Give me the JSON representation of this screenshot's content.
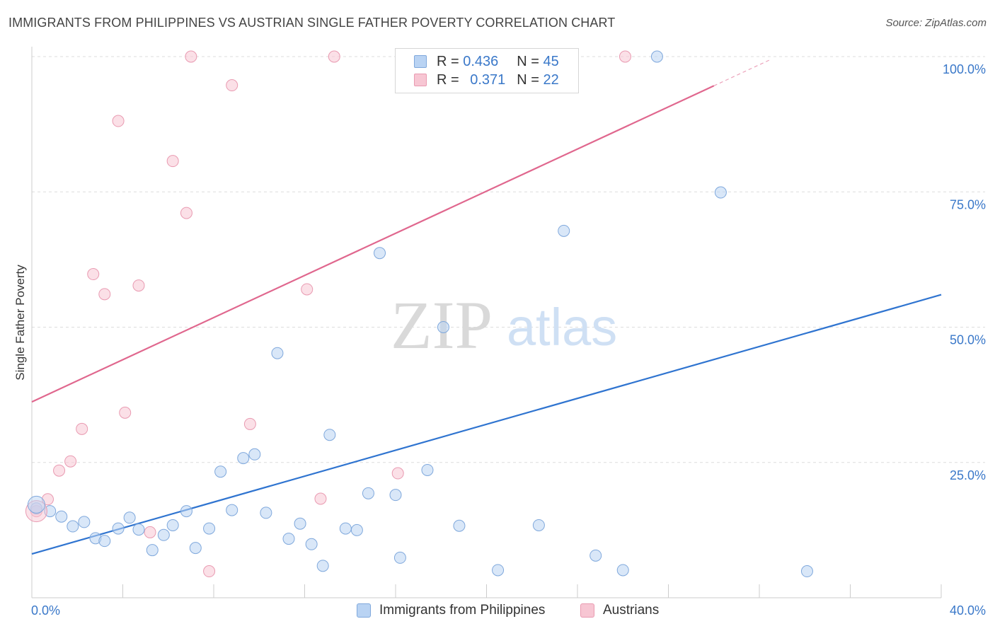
{
  "title": "IMMIGRANTS FROM PHILIPPINES VS AUSTRIAN SINGLE FATHER POVERTY CORRELATION CHART",
  "source": "Source: ZipAtlas.com",
  "watermark": {
    "zip": "ZIP",
    "atlas": "atlas"
  },
  "colors": {
    "blue_fill": "#b9d3f3",
    "blue_stroke": "#7fa8dc",
    "blue_line": "#2f74d0",
    "pink_fill": "#f7c6d3",
    "pink_stroke": "#e99ab1",
    "pink_line": "#e0678e",
    "tick_label": "#3a78c9",
    "grid": "#dddddd"
  },
  "legend": {
    "rows": [
      {
        "r_label": "R =",
        "r_value": "0.436",
        "n_label": "N =",
        "n_value": "45"
      },
      {
        "r_label": "R =",
        "r_value": "0.371",
        "n_label": "N =",
        "n_value": "22"
      }
    ]
  },
  "chart_data": {
    "type": "scatter",
    "title": "IMMIGRANTS FROM PHILIPPINES VS AUSTRIAN SINGLE FATHER POVERTY CORRELATION CHART",
    "xlabel": "",
    "ylabel": "Single Father Poverty",
    "xlim": [
      0,
      40
    ],
    "ylim": [
      0,
      100
    ],
    "x_tick_labels": [
      "0.0%",
      "40.0%"
    ],
    "y_tick_labels": [
      "25.0%",
      "50.0%",
      "75.0%",
      "100.0%"
    ],
    "y_ticks": [
      25,
      50,
      75,
      100
    ],
    "grid": true,
    "legend_position": "bottom",
    "series": [
      {
        "name": "Immigrants from Philippines",
        "color": "#b9d3f3",
        "points": [
          [
            0.2,
            16.5
          ],
          [
            0.8,
            16.0
          ],
          [
            1.3,
            15.0
          ],
          [
            1.8,
            13.2
          ],
          [
            2.3,
            14.0
          ],
          [
            2.8,
            11.0
          ],
          [
            3.2,
            10.5
          ],
          [
            3.8,
            12.8
          ],
          [
            4.3,
            14.8
          ],
          [
            4.7,
            12.6
          ],
          [
            5.3,
            8.8
          ],
          [
            5.8,
            11.6
          ],
          [
            6.2,
            13.4
          ],
          [
            6.8,
            16.0
          ],
          [
            7.2,
            9.2
          ],
          [
            7.8,
            12.8
          ],
          [
            8.3,
            23.3
          ],
          [
            8.8,
            16.2
          ],
          [
            9.3,
            25.8
          ],
          [
            9.8,
            26.5
          ],
          [
            10.3,
            15.7
          ],
          [
            10.8,
            45.2
          ],
          [
            11.3,
            10.9
          ],
          [
            11.8,
            13.7
          ],
          [
            12.3,
            9.9
          ],
          [
            12.8,
            5.9
          ],
          [
            13.1,
            30.1
          ],
          [
            13.8,
            12.8
          ],
          [
            14.3,
            12.5
          ],
          [
            14.8,
            19.3
          ],
          [
            15.3,
            63.7
          ],
          [
            16.0,
            19.0
          ],
          [
            16.2,
            7.4
          ],
          [
            17.4,
            23.6
          ],
          [
            18.1,
            50.0
          ],
          [
            18.8,
            13.3
          ],
          [
            20.5,
            5.1
          ],
          [
            22.3,
            13.4
          ],
          [
            23.4,
            67.8
          ],
          [
            24.8,
            7.8
          ],
          [
            26.0,
            5.1
          ],
          [
            27.5,
            100.0
          ],
          [
            30.3,
            74.9
          ],
          [
            34.1,
            4.9
          ],
          [
            23.2,
            100.0
          ]
        ]
      },
      {
        "name": "Austrians",
        "color": "#f7c6d3",
        "points": [
          [
            0.2,
            16.0
          ],
          [
            0.7,
            18.2
          ],
          [
            1.2,
            23.5
          ],
          [
            1.7,
            25.2
          ],
          [
            2.2,
            31.2
          ],
          [
            2.7,
            59.8
          ],
          [
            3.2,
            56.1
          ],
          [
            3.8,
            88.1
          ],
          [
            4.1,
            34.2
          ],
          [
            4.7,
            57.7
          ],
          [
            5.2,
            12.1
          ],
          [
            6.2,
            80.7
          ],
          [
            6.8,
            71.1
          ],
          [
            7.0,
            100.0
          ],
          [
            7.8,
            4.9
          ],
          [
            8.8,
            94.7
          ],
          [
            9.6,
            32.1
          ],
          [
            12.1,
            57.0
          ],
          [
            12.7,
            18.3
          ],
          [
            13.3,
            100.0
          ],
          [
            16.1,
            23.0
          ],
          [
            26.1,
            100.0
          ]
        ]
      }
    ],
    "trend_lines": [
      {
        "series": "Immigrants from Philippines",
        "x": [
          0,
          40
        ],
        "y": [
          8.1,
          56.0
        ]
      },
      {
        "series": "Austrians",
        "x": [
          0,
          30
        ],
        "y": [
          36.2,
          94.6
        ],
        "dashed_extension_x": [
          30,
          32.5
        ]
      }
    ]
  }
}
